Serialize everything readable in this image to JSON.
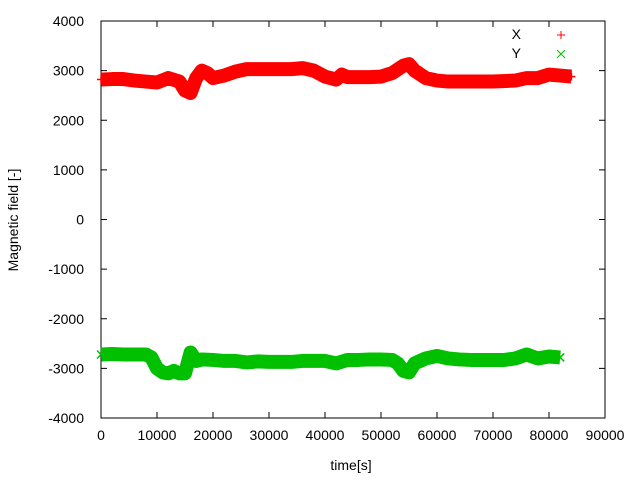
{
  "chart_data": {
    "type": "scatter",
    "title": "",
    "xlabel": "time[s]",
    "ylabel": "Magnetic field [-]",
    "xlim": [
      0,
      90000
    ],
    "ylim": [
      -4000,
      4000
    ],
    "xticks": [
      0,
      10000,
      20000,
      30000,
      40000,
      50000,
      60000,
      70000,
      80000,
      90000
    ],
    "yticks": [
      -4000,
      -3000,
      -2000,
      -1000,
      0,
      1000,
      2000,
      3000,
      4000
    ],
    "grid": false,
    "legend": "top-right",
    "series": [
      {
        "name": "X",
        "color": "#ff0000",
        "marker": "+",
        "x": [
          0,
          2000,
          4000,
          6000,
          8000,
          10000,
          12000,
          14000,
          15000,
          16000,
          17000,
          18000,
          19000,
          20000,
          22000,
          24000,
          26000,
          28000,
          30000,
          32000,
          34000,
          36000,
          38000,
          40000,
          42000,
          43000,
          44000,
          46000,
          48000,
          50000,
          52000,
          54000,
          55000,
          56000,
          58000,
          60000,
          62000,
          64000,
          66000,
          70000,
          74000,
          76000,
          78000,
          80000,
          82000,
          84000
        ],
        "y": [
          2820,
          2830,
          2830,
          2800,
          2780,
          2760,
          2850,
          2780,
          2600,
          2550,
          2850,
          3000,
          2950,
          2850,
          2900,
          2980,
          3030,
          3030,
          3030,
          3030,
          3030,
          3050,
          3000,
          2880,
          2820,
          2920,
          2870,
          2870,
          2870,
          2880,
          2950,
          3100,
          3130,
          3000,
          2850,
          2800,
          2780,
          2780,
          2780,
          2780,
          2800,
          2850,
          2850,
          2920,
          2900,
          2880
        ]
      },
      {
        "name": "Y",
        "color": "#00c000",
        "marker": "x",
        "x": [
          0,
          2000,
          4000,
          6000,
          8000,
          9000,
          10000,
          11000,
          12000,
          13000,
          14000,
          15000,
          16000,
          17000,
          18000,
          20000,
          22000,
          24000,
          26000,
          28000,
          30000,
          32000,
          34000,
          36000,
          38000,
          40000,
          42000,
          44000,
          46000,
          48000,
          50000,
          52000,
          53000,
          54000,
          55000,
          56000,
          58000,
          60000,
          62000,
          64000,
          66000,
          68000,
          70000,
          72000,
          74000,
          76000,
          78000,
          80000,
          82000
        ],
        "y": [
          -2720,
          -2710,
          -2720,
          -2720,
          -2720,
          -2780,
          -3000,
          -3080,
          -3100,
          -3050,
          -3100,
          -3100,
          -2680,
          -2850,
          -2820,
          -2830,
          -2850,
          -2850,
          -2880,
          -2860,
          -2870,
          -2870,
          -2870,
          -2850,
          -2850,
          -2850,
          -2900,
          -2830,
          -2830,
          -2820,
          -2820,
          -2830,
          -2900,
          -3050,
          -3080,
          -2900,
          -2800,
          -2750,
          -2800,
          -2820,
          -2830,
          -2830,
          -2830,
          -2830,
          -2800,
          -2720,
          -2800,
          -2760,
          -2780
        ]
      }
    ]
  }
}
